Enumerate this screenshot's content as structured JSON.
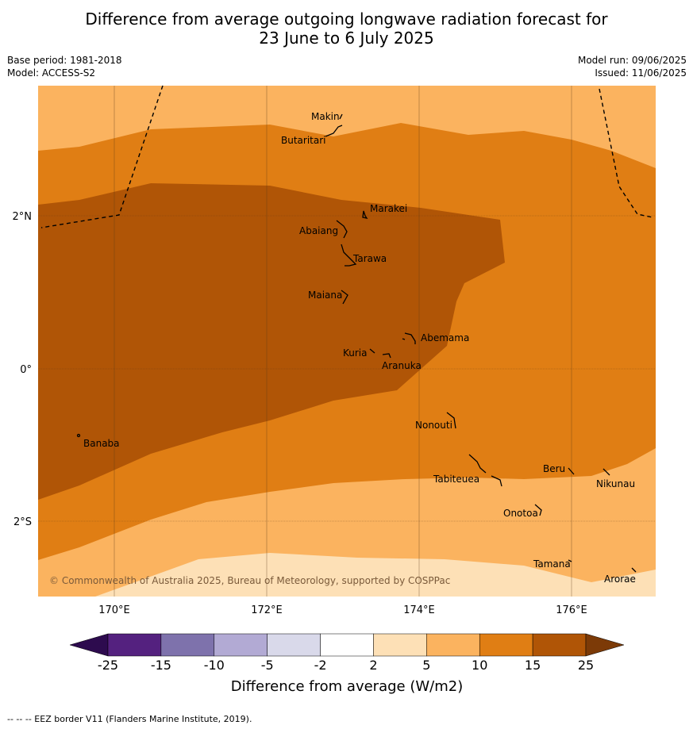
{
  "title": {
    "line1": "Difference from average outgoing longwave radiation forecast for",
    "line2": "23 June to 6 July 2025"
  },
  "meta": {
    "base_period": "Base period: 1981-2018",
    "model": "Model: ACCESS-S2",
    "model_run": "Model run: 09/06/2025",
    "issued": "Issued: 11/06/2025"
  },
  "map": {
    "lat_labels": [
      "2°N",
      "0°",
      "2°S"
    ],
    "lon_labels": [
      "170°E",
      "172°E",
      "174°E",
      "176°E"
    ],
    "places": [
      "Makin",
      "Butaritari",
      "Marakei",
      "Abaiang",
      "Tarawa",
      "Maiana",
      "Abemama",
      "Kuria",
      "Aranuka",
      "Nonouti",
      "Banaba",
      "Beru",
      "Nikunau",
      "Tabiteuea",
      "Onotoa",
      "Tamana",
      "Arorae"
    ],
    "copyright": "© Commonwealth of Australia 2025, Bureau of Meteorology, supported by COSPPac"
  },
  "legend": {
    "tick_labels": [
      "-25",
      "-15",
      "-10",
      "-5",
      "-2",
      "2",
      "5",
      "10",
      "15",
      "25"
    ],
    "colors": [
      "#54217f",
      "#7e72ac",
      "#b2aad4",
      "#d9d9ea",
      "#ffffff",
      "#fde0b6",
      "#fbb35f",
      "#e07e14",
      "#b05506"
    ],
    "under_color": "#2d0b4e",
    "over_color": "#7c3a07",
    "label": "Difference from average (W/m2)"
  },
  "footer": "--  --  -- EEZ border V11 (Flanders Marine Institute, 2019)."
}
